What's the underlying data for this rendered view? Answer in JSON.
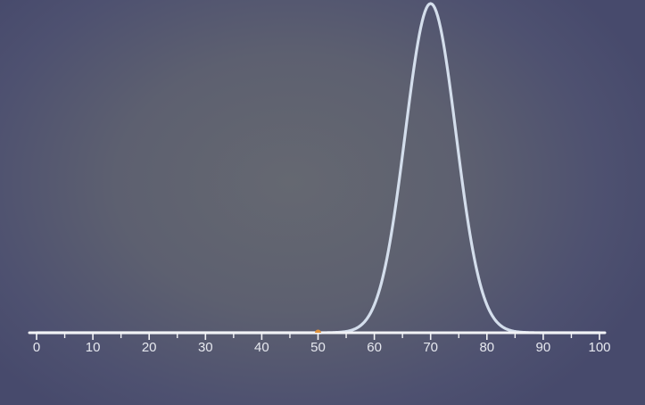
{
  "chart_data": {
    "type": "line",
    "title": "",
    "xlabel": "",
    "ylabel": "",
    "xlim": [
      0,
      100
    ],
    "ticks": {
      "major": [
        0,
        10,
        20,
        30,
        40,
        50,
        60,
        70,
        80,
        90,
        100
      ],
      "labels": [
        "0",
        "10",
        "20",
        "30",
        "40",
        "50",
        "60",
        "70",
        "80",
        "90",
        "100"
      ],
      "minor": [
        5,
        15,
        25,
        35,
        45,
        55,
        65,
        75,
        85,
        95
      ]
    },
    "series": [
      {
        "curve": "normal",
        "mean": 70,
        "sd": 4.5,
        "color": "#d4deec"
      }
    ],
    "marker": {
      "x": 50,
      "color": "#e0923a"
    },
    "grid": false,
    "colors": {
      "axis": "#f2f3f6",
      "curve": "#d4deec",
      "marker": "#e0923a",
      "background": "#5d6070"
    }
  }
}
